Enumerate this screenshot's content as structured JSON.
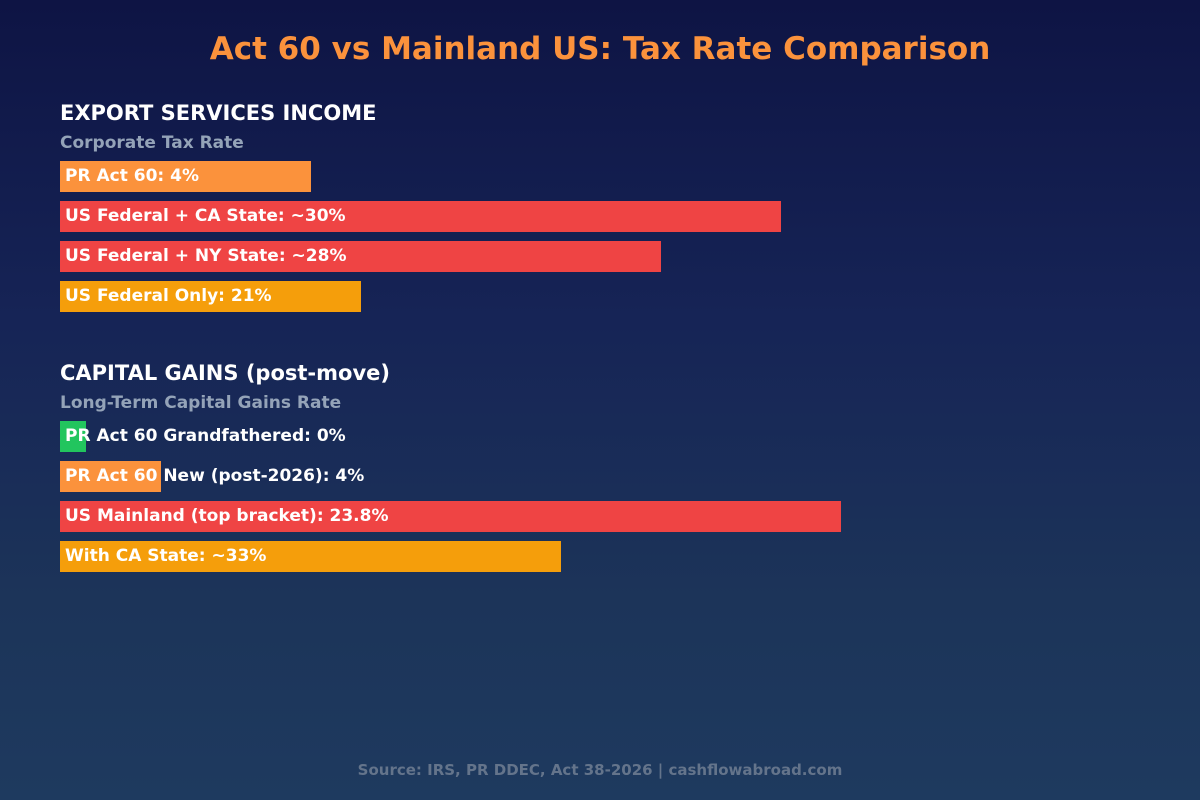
{
  "title": "Act 60 vs Mainland US: Tax Rate Comparison",
  "source": "Source: IRS, PR DDEC, Act 38-2026 | cashflowabroad.com",
  "chart_data": [
    {
      "type": "bar",
      "orientation": "horizontal",
      "section": "EXPORT SERVICES INCOME",
      "subtitle": "Corporate Tax Rate",
      "unit": "%",
      "categories": [
        "PR Act 60",
        "US Federal + CA State",
        "US Federal + NY State",
        "US Federal Only"
      ],
      "values": [
        4,
        30,
        28,
        21
      ],
      "labels": [
        "PR Act 60: 4%",
        "US Federal + CA State: ~30%",
        "US Federal + NY State: ~28%",
        "US Federal Only: 21%"
      ],
      "colors": [
        "#fb923c",
        "#ef4444",
        "#ef4444",
        "#f59e0b"
      ],
      "xlim": [
        0,
        43
      ]
    },
    {
      "type": "bar",
      "orientation": "horizontal",
      "section": "CAPITAL GAINS (post-move)",
      "subtitle": "Long-Term Capital Gains Rate",
      "unit": "%",
      "categories": [
        "PR Act 60 Grandfathered",
        "PR Act 60 New (post-2026)",
        "US Mainland (top bracket)",
        "With CA State"
      ],
      "values": [
        0,
        4,
        23.8,
        33
      ],
      "labels": [
        "PR Act 60 Grandfathered: 0%",
        "PR Act 60 New (post-2026): 4%",
        "US Mainland (top bracket): 23.8%",
        "With CA State: ~33%"
      ],
      "colors": [
        "#22c55e",
        "#fb923c",
        "#ef4444",
        "#f59e0b"
      ],
      "xlim": [
        0,
        43
      ]
    }
  ]
}
